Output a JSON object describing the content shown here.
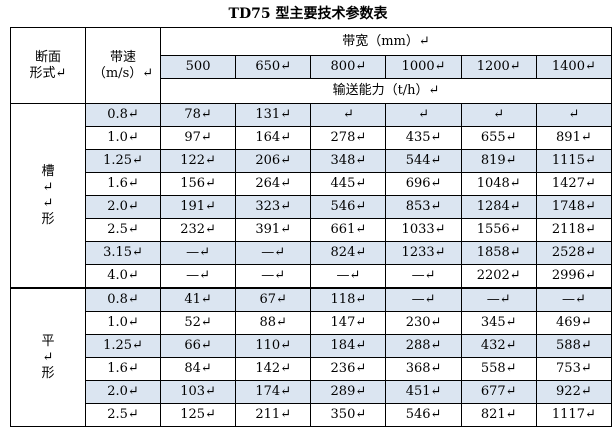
{
  "title": "TD75 型主要技术参数表",
  "table": {
    "header": {
      "section": "断面\n形式↵",
      "speed": "带速\n（m/s）↵",
      "width": "带宽（mm）↵",
      "widths": [
        "500",
        "650↵",
        "800↵",
        "1000↵",
        "1200↵",
        "1400↵"
      ],
      "capacity": "输送能力（t/h）↵"
    },
    "groups": [
      {
        "label": "槽\n↵\n↵\n形",
        "rows": [
          [
            "0.8↵",
            "78↵",
            "131↵",
            "↵",
            "↵",
            "↵",
            "↵"
          ],
          [
            "1.0↵",
            "97↵",
            "164↵",
            "278↵",
            "435↵",
            "655↵",
            "891↵"
          ],
          [
            "1.25↵",
            "122↵",
            "206↵",
            "348↵",
            "544↵",
            "819↵",
            "1115↵"
          ],
          [
            "1.6↵",
            "156↵",
            "264↵",
            "445↵",
            "696↵",
            "1048↵",
            "1427↵"
          ],
          [
            "2.0↵",
            "191↵",
            "323↵",
            "546↵",
            "853↵",
            "1284↵",
            "1748↵"
          ],
          [
            "2.5↵",
            "232↵",
            "391↵",
            "661↵",
            "1033↵",
            "1556↵",
            "2118↵"
          ],
          [
            "3.15↵",
            "—↵",
            "—↵",
            "824↵",
            "1233↵",
            "1858↵",
            "2528↵"
          ],
          [
            "4.0↵",
            "—↵",
            "—↵",
            "—↵",
            "—↵",
            "2202↵",
            "2996↵"
          ]
        ]
      },
      {
        "label": "平\n↵\n形",
        "rows": [
          [
            "0.8↵",
            "41↵",
            "67↵",
            "118↵",
            "—↵",
            "—↵",
            "—↵"
          ],
          [
            "1.0↵",
            "52↵",
            "88↵",
            "147↵",
            "230↵",
            "345↵",
            "469↵"
          ],
          [
            "1.25↵",
            "66↵",
            "110↵",
            "184↵",
            "288↵",
            "432↵",
            "588↵"
          ],
          [
            "1.6↵",
            "84↵",
            "142↵",
            "236↵",
            "368↵",
            "558↵",
            "753↵"
          ],
          [
            "2.0↵",
            "103↵",
            "174↵",
            "289↵",
            "451↵",
            "677↵",
            "922↵"
          ],
          [
            "2.5↵",
            "125↵",
            "211↵",
            "350↵",
            "546↵",
            "821↵",
            "1117↵"
          ]
        ]
      }
    ]
  }
}
